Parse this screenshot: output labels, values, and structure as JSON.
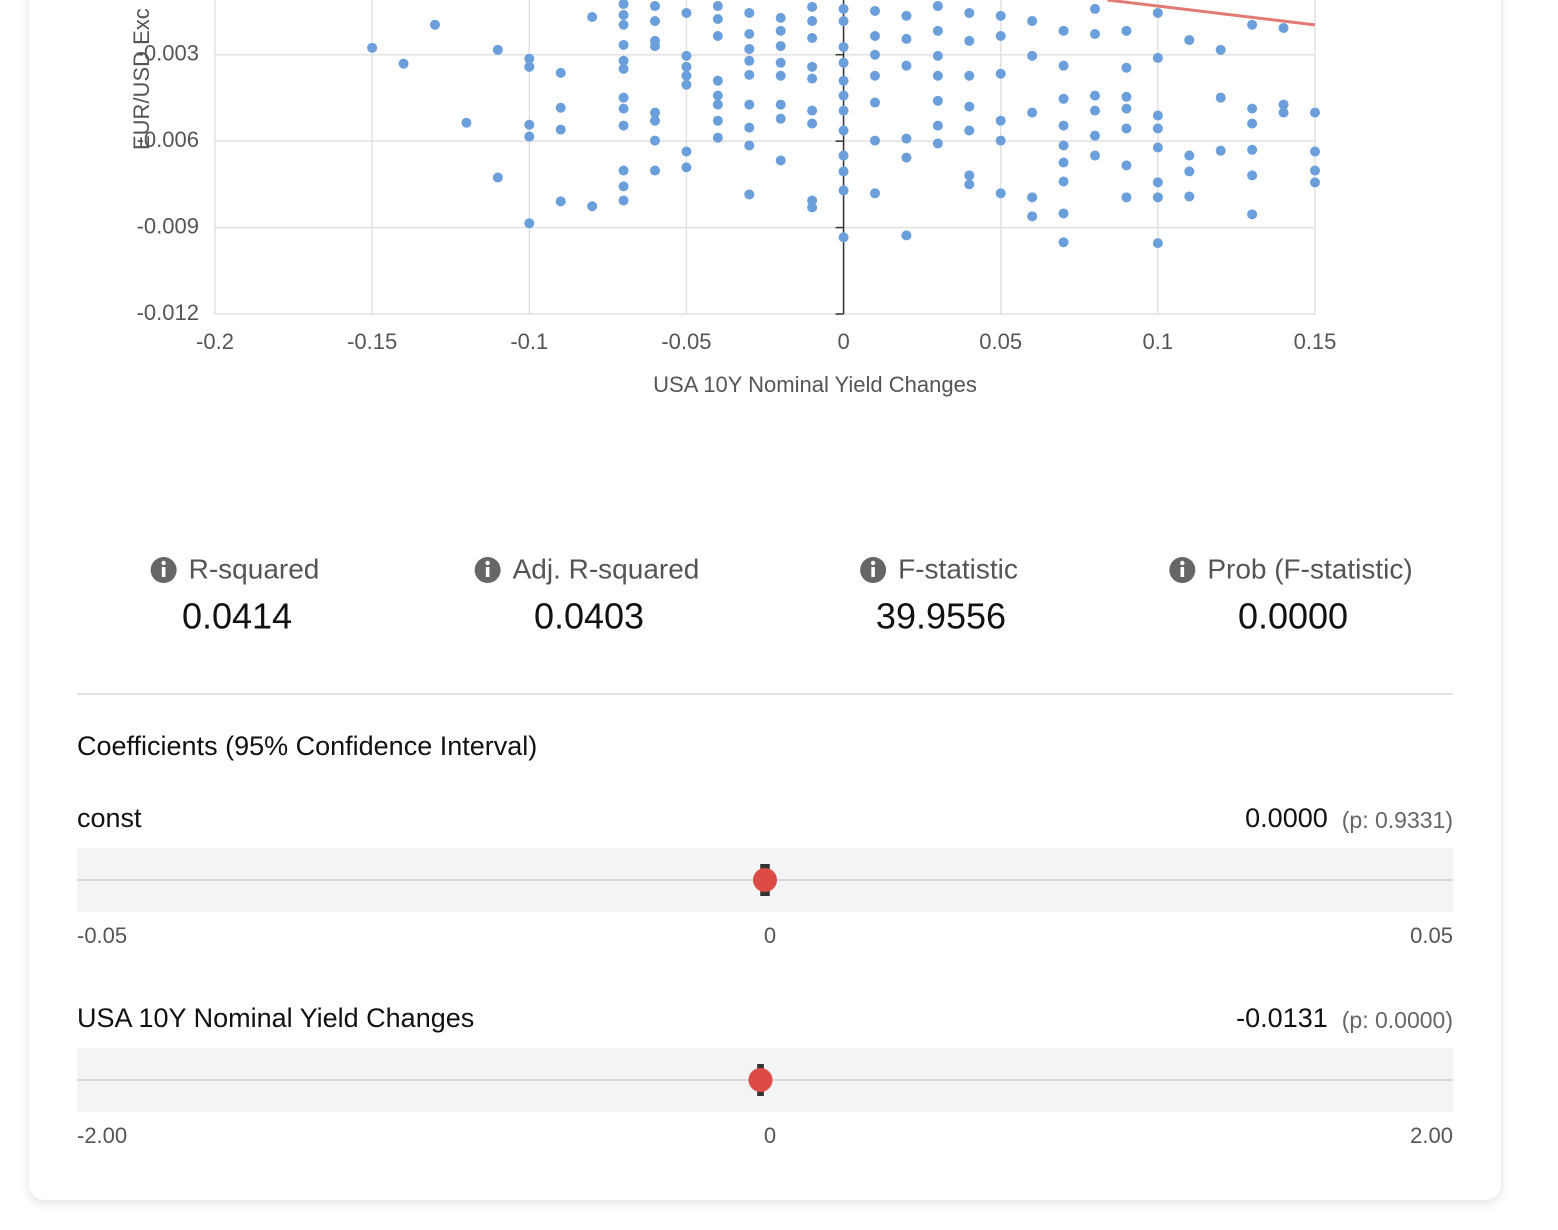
{
  "chart_data": {
    "type": "scatter",
    "y_label": "EUR/USD Exc",
    "x_label": "USA 10Y Nominal Yield Changes",
    "color": "#6a9fdc",
    "trend_color": "#e07a72",
    "grid": true,
    "xlim": [
      -0.2,
      0.15
    ],
    "xticks": [
      -0.2,
      -0.15,
      -0.1,
      -0.05,
      0,
      0.05,
      0.1,
      0.15
    ],
    "ylim": [
      -0.012,
      -0.0011
    ],
    "yticks": [
      -0.012,
      -0.009,
      -0.006,
      -0.003
    ],
    "x": [
      -0.15,
      -0.14,
      -0.13,
      -0.12,
      -0.11,
      -0.11,
      -0.1,
      -0.1,
      -0.1,
      -0.1,
      -0.1,
      -0.09,
      -0.09,
      -0.09,
      -0.09,
      -0.08,
      -0.08,
      -0.07,
      -0.07,
      -0.07,
      -0.07,
      -0.07,
      -0.07,
      -0.07,
      -0.07,
      -0.07,
      -0.07,
      -0.07,
      -0.07,
      -0.06,
      -0.06,
      -0.06,
      -0.06,
      -0.06,
      -0.06,
      -0.06,
      -0.06,
      -0.05,
      -0.05,
      -0.05,
      -0.05,
      -0.05,
      -0.05,
      -0.05,
      -0.04,
      -0.04,
      -0.04,
      -0.04,
      -0.04,
      -0.04,
      -0.04,
      -0.04,
      -0.03,
      -0.03,
      -0.03,
      -0.03,
      -0.03,
      -0.03,
      -0.03,
      -0.03,
      -0.03,
      -0.02,
      -0.02,
      -0.02,
      -0.02,
      -0.02,
      -0.02,
      -0.02,
      -0.02,
      -0.01,
      -0.01,
      -0.01,
      -0.01,
      -0.01,
      -0.01,
      -0.01,
      -0.01,
      -0.01,
      0,
      0,
      0,
      0,
      0,
      0,
      0,
      0,
      0,
      0,
      0,
      0,
      0.01,
      0.01,
      0.01,
      0.01,
      0.01,
      0.01,
      0.01,
      0.02,
      0.02,
      0.02,
      0.02,
      0.02,
      0.02,
      0.03,
      0.03,
      0.03,
      0.03,
      0.03,
      0.03,
      0.03,
      0.04,
      0.04,
      0.04,
      0.04,
      0.04,
      0.04,
      0.04,
      0.05,
      0.05,
      0.05,
      0.05,
      0.05,
      0.05,
      0.06,
      0.06,
      0.06,
      0.06,
      0.06,
      0.07,
      0.07,
      0.07,
      0.07,
      0.07,
      0.07,
      0.07,
      0.07,
      0.07,
      0.08,
      0.08,
      0.08,
      0.08,
      0.08,
      0.08,
      0.09,
      0.09,
      0.09,
      0.09,
      0.09,
      0.09,
      0.09,
      0.1,
      0.1,
      0.1,
      0.1,
      0.1,
      0.1,
      0.1,
      0.1,
      0.11,
      0.11,
      0.11,
      0.11,
      0.12,
      0.12,
      0.12,
      0.13,
      0.13,
      0.13,
      0.13,
      0.13,
      0.13,
      0.14,
      0.14,
      0.14,
      0.15,
      0.15,
      0.15,
      0.15
    ],
    "values": [
      -0.00276,
      -0.00331,
      -0.00196,
      -0.00536,
      -0.00283,
      -0.00726,
      -0.00314,
      -0.00342,
      -0.00543,
      -0.00584,
      -0.00885,
      -0.00363,
      -0.00484,
      -0.0056,
      -0.00809,
      -0.00169,
      -0.00826,
      -0.00124,
      -0.00162,
      -0.00196,
      -0.00266,
      -0.00321,
      -0.00349,
      -0.00449,
      -0.00487,
      -0.00546,
      -0.00702,
      -0.00757,
      -0.00806,
      -0.00131,
      -0.00183,
      -0.00252,
      -0.0027,
      -0.00501,
      -0.00529,
      -0.00598,
      -0.00702,
      -0.00155,
      -0.00304,
      -0.00342,
      -0.00373,
      -0.00404,
      -0.00636,
      -0.00691,
      -0.00131,
      -0.00176,
      -0.00235,
      -0.0039,
      -0.00442,
      -0.00473,
      -0.00529,
      -0.00588,
      -0.00155,
      -0.00228,
      -0.0028,
      -0.00321,
      -0.0037,
      -0.00473,
      -0.00553,
      -0.00615,
      -0.00785,
      -0.00172,
      -0.00217,
      -0.0027,
      -0.00328,
      -0.00373,
      -0.00473,
      -0.00522,
      -0.00667,
      -0.00134,
      -0.00183,
      -0.00242,
      -0.00342,
      -0.00383,
      -0.00494,
      -0.00539,
      -0.00806,
      -0.0083,
      -0.00141,
      -0.00183,
      -0.00273,
      -0.00328,
      -0.0039,
      -0.00442,
      -0.00494,
      -0.00563,
      -0.0065,
      -0.00705,
      -0.00771,
      -0.00934,
      -0.00148,
      -0.00235,
      -0.003,
      -0.00373,
      -0.00466,
      -0.00598,
      -0.00781,
      -0.00165,
      -0.00245,
      -0.00338,
      -0.00591,
      -0.00657,
      -0.00927,
      -0.00131,
      -0.00217,
      -0.00304,
      -0.00373,
      -0.0046,
      -0.00546,
      -0.00608,
      -0.00155,
      -0.00252,
      -0.00373,
      -0.0048,
      -0.00563,
      -0.00719,
      -0.0075,
      -0.00165,
      -0.00235,
      -0.00366,
      -0.00529,
      -0.00598,
      -0.00781,
      -0.00183,
      -0.00304,
      -0.00501,
      -0.00795,
      -0.00861,
      -0.00217,
      -0.00338,
      -0.00453,
      -0.00546,
      -0.00615,
      -0.00674,
      -0.0074,
      -0.00851,
      -0.00951,
      -0.00141,
      -0.00228,
      -0.00442,
      -0.00494,
      -0.00581,
      -0.0065,
      -0.00217,
      -0.00345,
      -0.00446,
      -0.00487,
      -0.00556,
      -0.00684,
      -0.00795,
      -0.00155,
      -0.00311,
      -0.00511,
      -0.00556,
      -0.00622,
      -0.00743,
      -0.00795,
      -0.00954,
      -0.00249,
      -0.0065,
      -0.00705,
      -0.00792,
      -0.00283,
      -0.00449,
      -0.00633,
      -0.00196,
      -0.00487,
      -0.00539,
      -0.0063,
      -0.00719,
      -0.00854,
      -0.00207,
      -0.00473,
      -0.00501,
      -0.00501,
      -0.00636,
      -0.00702,
      -0.00743
    ]
  },
  "stats": [
    {
      "label": "R-squared",
      "value": "0.0414"
    },
    {
      "label": "Adj. R-squared",
      "value": "0.0403"
    },
    {
      "label": "F-statistic",
      "value": "39.9556"
    },
    {
      "label": "Prob (F-statistic)",
      "value": "0.0000"
    }
  ],
  "coefficients": {
    "title": "Coefficients (95% Confidence Interval)",
    "dot_color": "#dc4b45",
    "rows": [
      {
        "name": "const",
        "value": 0,
        "value_label": "0.0000",
        "p": "(p: 0.9331)",
        "ci": [
          -0.0002,
          0.0002
        ],
        "lim": [
          -0.05,
          0.05
        ],
        "ticks": [
          -0.05,
          0,
          0.05
        ]
      },
      {
        "name": "USA 10Y Nominal Yield Changes",
        "value": -0.0131,
        "value_label": "-0.0131",
        "p": "(p: 0.0000)",
        "ci": [
          -0.017,
          -0.009
        ],
        "lim": [
          -2,
          2
        ],
        "ticks": [
          {
            "value": -2,
            "label": "-2.00"
          },
          0,
          {
            "value": 2,
            "label": "2.00"
          }
        ]
      }
    ]
  }
}
